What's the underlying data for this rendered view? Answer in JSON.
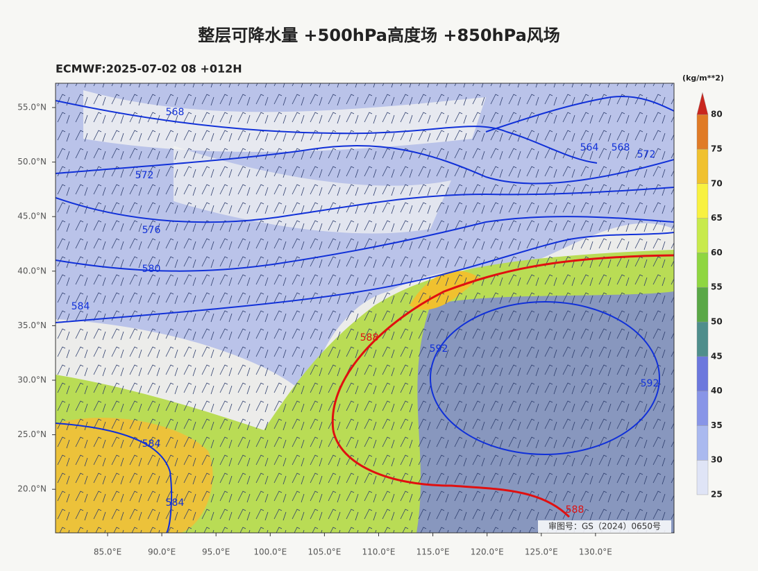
{
  "title": "整层可降水量 +500hPa高度场 +850hPa风场",
  "run_info": "ECMWF:2025-07-02 08 +012H",
  "map": {
    "lat_labels": [
      "55.0°N",
      "50.0°N",
      "45.0°N",
      "40.0°N",
      "35.0°N",
      "30.0°N",
      "25.0°N",
      "20.0°N"
    ],
    "lon_labels": [
      "85.0°E",
      "90.0°E",
      "95.0°E",
      "100.0°E",
      "105.0°E",
      "110.0°E",
      "115.0°E",
      "120.0°E",
      "125.0°E",
      "130.0°E"
    ],
    "contour_labels": [
      568,
      572,
      576,
      580,
      584,
      588,
      592,
      564,
      568,
      572,
      592,
      584,
      584,
      588
    ]
  },
  "colorbar": {
    "unit": "(kg/m**2)",
    "levels": [
      25,
      30,
      35,
      40,
      45,
      50,
      55,
      60,
      65,
      70,
      75,
      80
    ],
    "colors": [
      "#dfe4f6",
      "#aab9ef",
      "#8895e7",
      "#6c78dd",
      "#4f8e8c",
      "#5aa846",
      "#8fd640",
      "#c8ea4b",
      "#f8f140",
      "#f0c12f",
      "#e07b26",
      "#c9271f"
    ]
  },
  "approval": "审图号：GS（2024）0650号"
}
